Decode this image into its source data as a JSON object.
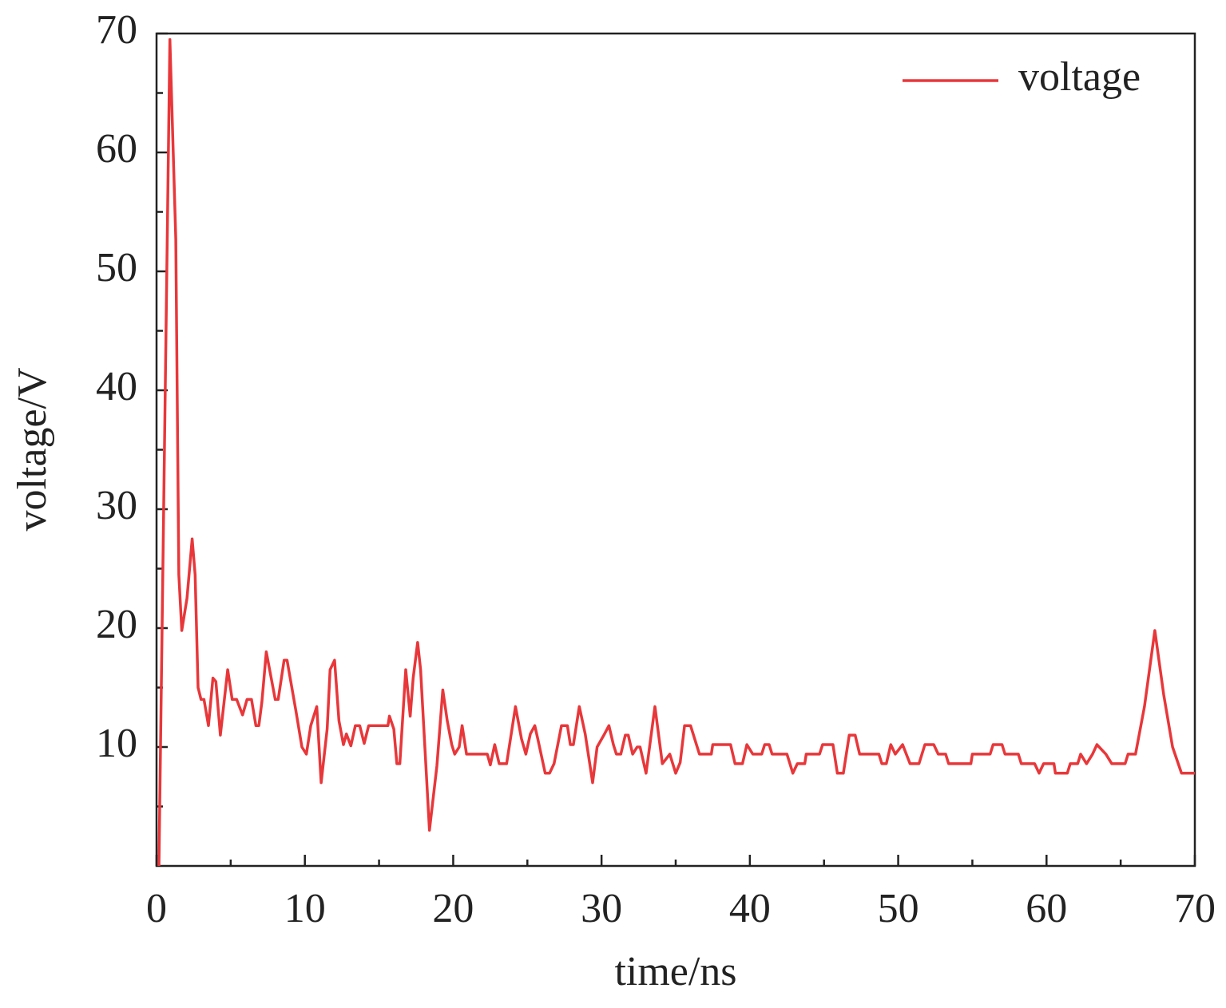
{
  "chart_data": {
    "type": "line",
    "xlabel": "time/ns",
    "ylabel": "voltage/V",
    "xlim": [
      0,
      70
    ],
    "ylim": [
      0,
      70
    ],
    "xticks": [
      0,
      10,
      20,
      30,
      40,
      50,
      60,
      70
    ],
    "yticks": [
      10,
      20,
      30,
      40,
      50,
      60,
      70
    ],
    "xminorticks": [
      5,
      15,
      25,
      35,
      45,
      55,
      65
    ],
    "yminorticks": [
      5,
      15,
      25,
      35,
      45,
      55,
      65
    ],
    "legend": "upper right",
    "x": [
      0.16,
      0.9,
      1.3,
      1.5,
      1.7,
      2.05,
      2.4,
      2.6,
      2.8,
      3.0,
      3.2,
      3.5,
      3.8,
      4.0,
      4.3,
      4.8,
      5.1,
      5.4,
      5.8,
      6.1,
      6.4,
      6.7,
      6.9,
      7.1,
      7.4,
      8.0,
      8.2,
      8.6,
      8.8,
      9.4,
      9.8,
      10.1,
      10.4,
      10.8,
      11.1,
      11.5,
      11.7,
      12.0,
      12.3,
      12.6,
      12.8,
      13.1,
      13.4,
      13.7,
      14.0,
      14.3,
      15.6,
      15.7,
      16.0,
      16.2,
      16.4,
      16.8,
      17.1,
      17.3,
      17.6,
      17.8,
      18.4,
      18.9,
      19.3,
      19.6,
      19.9,
      20.1,
      20.4,
      20.6,
      20.9,
      22.3,
      22.5,
      22.8,
      23.1,
      23.6,
      24.2,
      24.6,
      24.9,
      25.2,
      25.5,
      25.7,
      26.2,
      26.5,
      26.8,
      27.3,
      27.7,
      27.9,
      28.1,
      28.5,
      28.9,
      29.4,
      29.7,
      30.2,
      30.5,
      30.8,
      31.0,
      31.3,
      31.6,
      31.8,
      32.1,
      32.4,
      32.6,
      33.0,
      33.6,
      34.1,
      34.6,
      35.0,
      35.3,
      35.6,
      36.0,
      36.6,
      37.4,
      37.5,
      38.7,
      39.0,
      39.5,
      39.8,
      40.2,
      40.8,
      41.0,
      41.3,
      41.5,
      42.5,
      42.9,
      43.2,
      43.7,
      43.8,
      44.7,
      44.9,
      45.6,
      45.9,
      46.3,
      46.7,
      47.1,
      47.4,
      48.7,
      48.9,
      49.2,
      49.5,
      49.8,
      50.3,
      50.8,
      51.4,
      51.8,
      52.4,
      52.7,
      53.2,
      53.4,
      54.9,
      55.0,
      56.2,
      56.4,
      57.0,
      57.2,
      58.1,
      58.3,
      59.2,
      59.5,
      59.8,
      60.5,
      60.6,
      61.4,
      61.6,
      62.1,
      62.3,
      62.7,
      63.1,
      63.4,
      64.0,
      64.4,
      65.3,
      65.5,
      66.0,
      66.6,
      67.3,
      67.9,
      68.5,
      69.1,
      70.0
    ],
    "series": [
      {
        "name": "voltage",
        "color": "#e8373a",
        "values": [
          0,
          69.5,
          52.7,
          24.5,
          19.8,
          22.5,
          27.5,
          24.5,
          15,
          14,
          14,
          11.8,
          15.8,
          15.5,
          11,
          16.5,
          14,
          14,
          12.7,
          14,
          14,
          11.8,
          11.8,
          13.8,
          18,
          14,
          14,
          17.3,
          17.3,
          13,
          10,
          9.4,
          11.8,
          13.4,
          7,
          11.5,
          16.5,
          17.3,
          12.2,
          10.2,
          11.1,
          10.1,
          11.8,
          11.8,
          10.3,
          11.8,
          11.8,
          12.6,
          11.5,
          8.6,
          8.6,
          16.5,
          12.6,
          15.8,
          18.8,
          16.5,
          3,
          8.4,
          14.8,
          12.2,
          10.2,
          9.4,
          10,
          11.8,
          9.4,
          9.4,
          8.5,
          10.2,
          8.6,
          8.6,
          13.4,
          10.7,
          9.4,
          11.1,
          11.8,
          10.7,
          7.8,
          7.8,
          8.6,
          11.8,
          11.8,
          10.2,
          10.2,
          13.4,
          11.1,
          7,
          10,
          11.1,
          11.8,
          10.2,
          9.4,
          9.4,
          11,
          11,
          9.4,
          10,
          10,
          7.8,
          13.4,
          8.6,
          9.4,
          7.8,
          8.7,
          11.8,
          11.8,
          9.4,
          9.4,
          10.2,
          10.2,
          8.6,
          8.6,
          10.2,
          9.4,
          9.4,
          10.2,
          10.2,
          9.4,
          9.4,
          7.8,
          8.6,
          8.6,
          9.4,
          9.4,
          10.2,
          10.2,
          7.8,
          7.8,
          11,
          11,
          9.4,
          9.4,
          8.6,
          8.6,
          10.2,
          9.4,
          10.2,
          8.6,
          8.6,
          10.2,
          10.2,
          9.4,
          9.4,
          8.6,
          8.6,
          9.4,
          9.4,
          10.2,
          10.2,
          9.4,
          9.4,
          8.6,
          8.6,
          7.8,
          8.6,
          8.6,
          7.8,
          7.8,
          8.6,
          8.6,
          9.4,
          8.6,
          9.4,
          10.2,
          9.4,
          8.6,
          8.6,
          9.4,
          9.4,
          13.4,
          19.8,
          14.4,
          10,
          7.8,
          7.8
        ]
      }
    ]
  }
}
